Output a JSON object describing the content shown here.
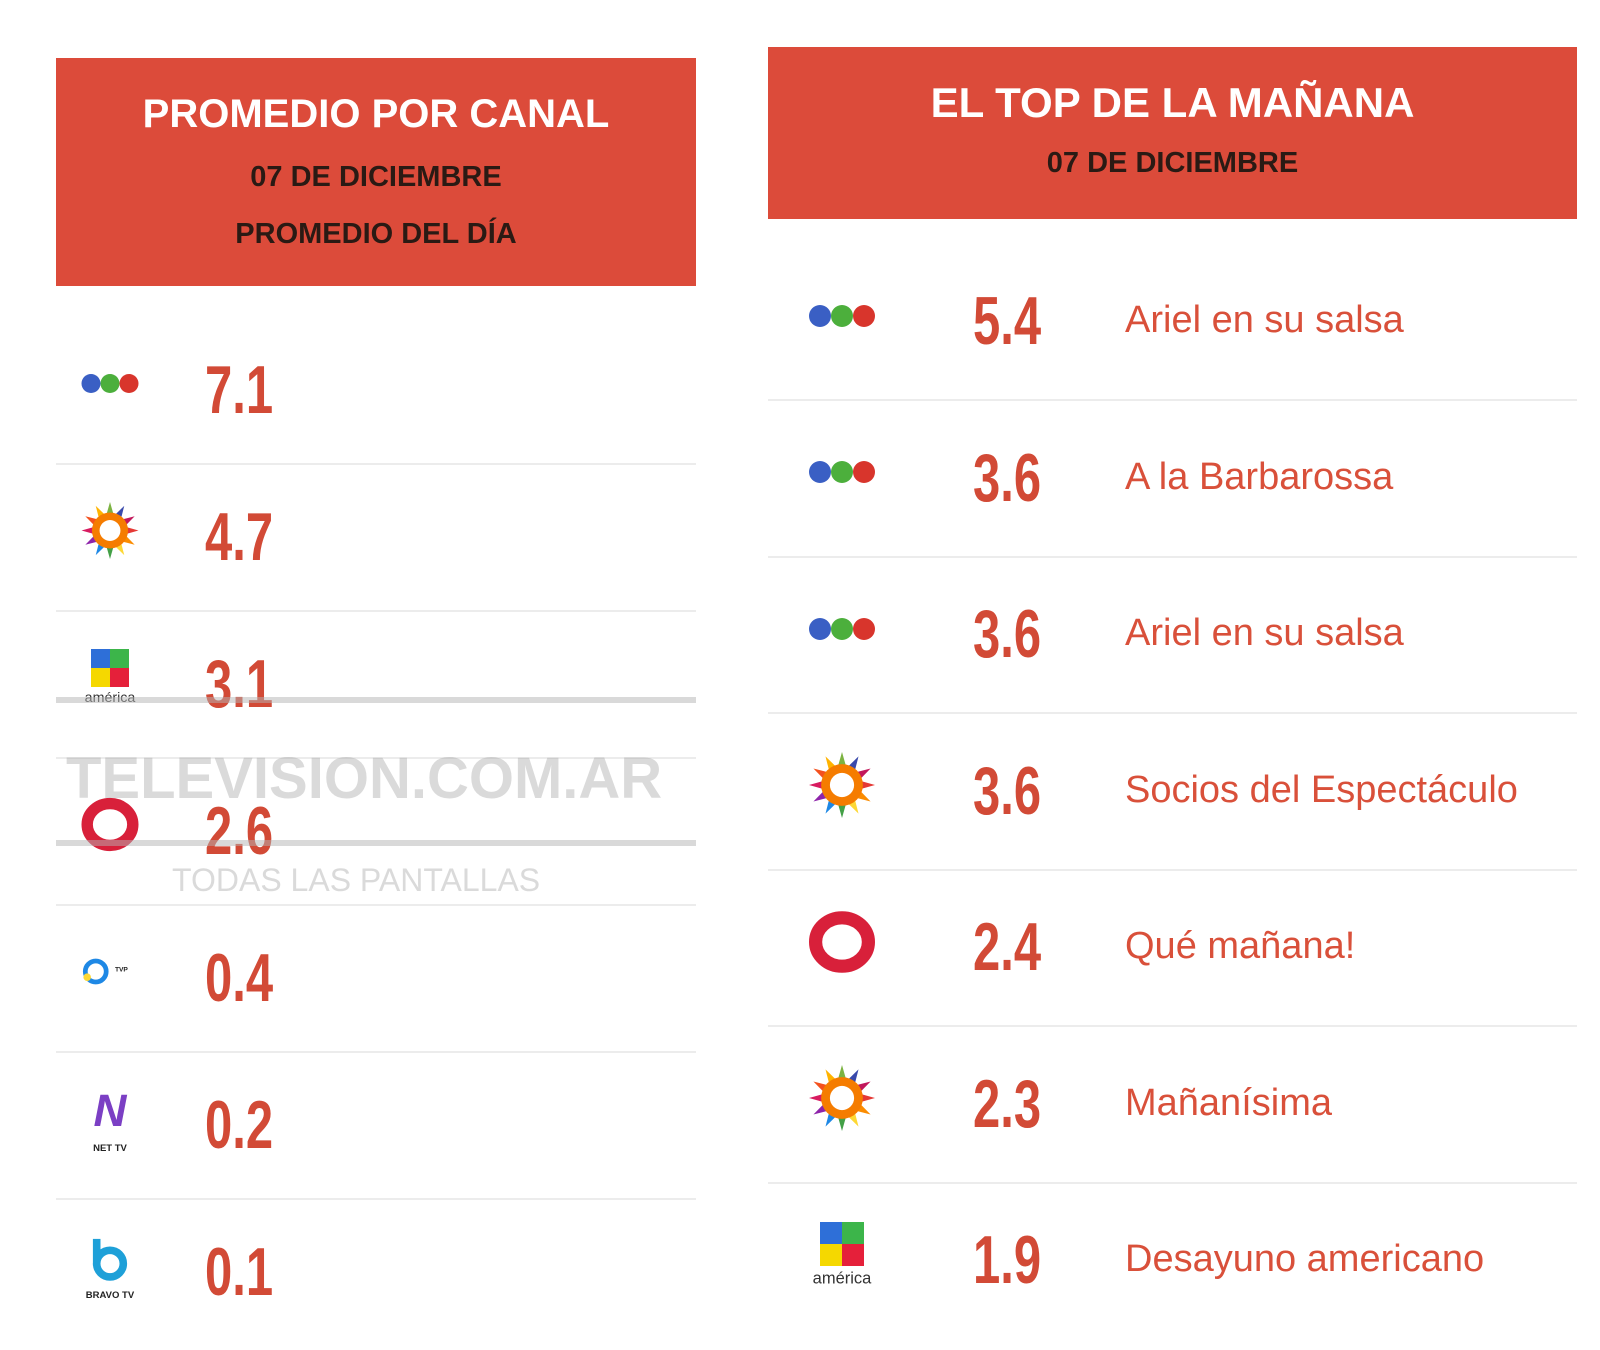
{
  "left": {
    "title": "PROMEDIO POR CANAL",
    "date": "07 DE DICIEMBRE",
    "subtitle": "PROMEDIO DEL DÍA",
    "rows": [
      {
        "value": 7.1
      },
      {
        "value": 4.7
      },
      {
        "value": 3.1,
        "logo_text": "américa"
      },
      {
        "value": 2.6
      },
      {
        "value": 0.4,
        "logo_text": "TVP"
      },
      {
        "value": 0.2,
        "logo_text": "NET TV"
      },
      {
        "value": 0.1,
        "logo_text": "BRAVO TV"
      }
    ]
  },
  "right": {
    "title": "EL TOP DE LA MAÑANA",
    "date": "07 DE DICIEMBRE",
    "rows": [
      {
        "value": 5.4,
        "program": "Ariel en su salsa"
      },
      {
        "value": 3.6,
        "program": "A la Barbarossa"
      },
      {
        "value": 3.6,
        "program": "Ariel en su salsa"
      },
      {
        "value": 3.6,
        "program": "Socios del Espectáculo"
      },
      {
        "value": 2.4,
        "program": "Qué mañana!"
      },
      {
        "value": 2.3,
        "program": "Mañanísima"
      },
      {
        "value": 1.9,
        "program": "Desayuno americano",
        "logo_text": "américa"
      }
    ]
  },
  "watermark": {
    "site": "TELEVISION.COM.AR",
    "tagline": "TODAS LAS PANTALLAS"
  }
}
